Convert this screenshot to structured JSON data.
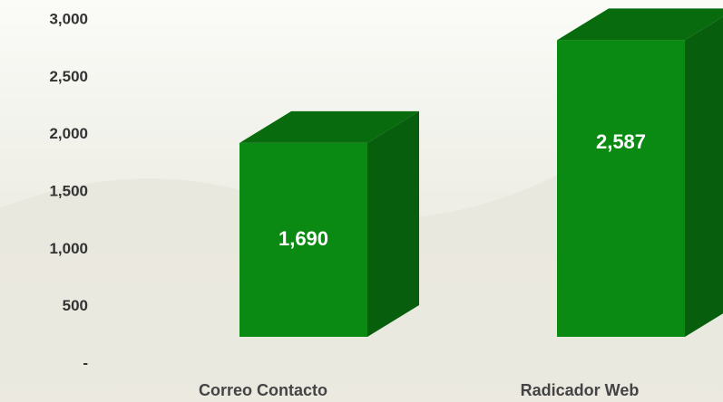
{
  "chart_data": {
    "type": "bar3d",
    "categories": [
      "Correo Contacto",
      "Radicador Web"
    ],
    "values": [
      1690,
      2587
    ],
    "value_labels": [
      "1,690",
      "2,587"
    ],
    "color": "#0a8a12",
    "ylim": [
      0,
      3000
    ],
    "yticks": [
      {
        "value": 0,
        "label": "-"
      },
      500,
      {
        "value": 1000,
        "label": "1,000"
      },
      {
        "value": 1500,
        "label": "1,500"
      },
      {
        "value": 2000,
        "label": "2,000"
      },
      {
        "value": 2500,
        "label": "2,500"
      },
      {
        "value": 3000,
        "label": "3,000"
      }
    ],
    "grid": false
  }
}
